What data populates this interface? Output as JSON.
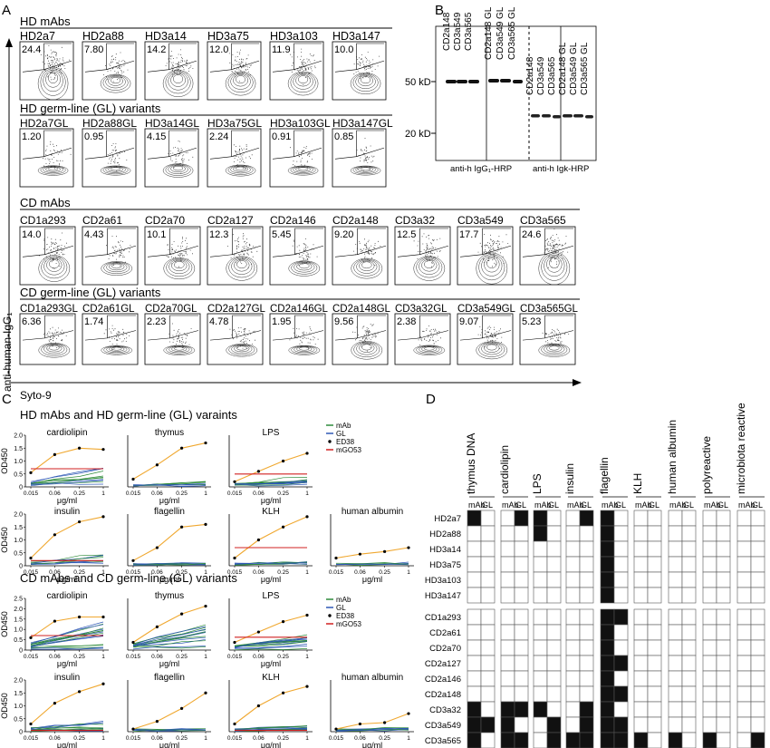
{
  "panels": {
    "A": {
      "letter": "A",
      "y_axis_label": "anti-human-IgG₁",
      "x_axis_label": "Syto-9",
      "groups": [
        {
          "title": "HD mAbs",
          "items": [
            {
              "name": "HD2a7",
              "pct": "24.4"
            },
            {
              "name": "HD2a88",
              "pct": "7.80"
            },
            {
              "name": "HD3a14",
              "pct": "14.2"
            },
            {
              "name": "HD3a75",
              "pct": "12.0"
            },
            {
              "name": "HD3a103",
              "pct": "11.9"
            },
            {
              "name": "HD3a147",
              "pct": "10.0"
            }
          ]
        },
        {
          "title": "HD germ-line (GL) variants",
          "items": [
            {
              "name": "HD2a7GL",
              "pct": "1.20"
            },
            {
              "name": "HD2a88GL",
              "pct": "0.95"
            },
            {
              "name": "HD3a14GL",
              "pct": "4.15"
            },
            {
              "name": "HD3a75GL",
              "pct": "2.24"
            },
            {
              "name": "HD3a103GL",
              "pct": "0.91"
            },
            {
              "name": "HD3a147GL",
              "pct": "0.85"
            }
          ]
        },
        {
          "title": "CD mAbs",
          "items": [
            {
              "name": "CD1a293",
              "pct": "14.0"
            },
            {
              "name": "CD2a61",
              "pct": "4.43"
            },
            {
              "name": "CD2a70",
              "pct": "10.1"
            },
            {
              "name": "CD2a127",
              "pct": "12.3"
            },
            {
              "name": "CD2a146",
              "pct": "5.45"
            },
            {
              "name": "CD2a148",
              "pct": "9.20"
            },
            {
              "name": "CD3a32",
              "pct": "12.5"
            },
            {
              "name": "CD3a549",
              "pct": "17.7"
            },
            {
              "name": "CD3a565",
              "pct": "24.6"
            }
          ]
        },
        {
          "title": "CD germ-line (GL) variants",
          "items": [
            {
              "name": "CD1a293GL",
              "pct": "6.36"
            },
            {
              "name": "CD2a61GL",
              "pct": "1.74"
            },
            {
              "name": "CD2a70GL",
              "pct": "2.23"
            },
            {
              "name": "CD2a127GL",
              "pct": "4.78"
            },
            {
              "name": "CD2a146GL",
              "pct": "1.95"
            },
            {
              "name": "CD2a148GL",
              "pct": "9.56"
            },
            {
              "name": "CD3a32GL",
              "pct": "2.38"
            },
            {
              "name": "CD3a549GL",
              "pct": "9.07"
            },
            {
              "name": "CD3a565GL",
              "pct": "5.23"
            }
          ]
        }
      ]
    },
    "B": {
      "letter": "B",
      "lanes": [
        "CD2a148",
        "CD3a549",
        "CD3a565",
        "CD2a148 GL",
        "CD3a549 GL",
        "CD3a565 GL",
        "CD2a148",
        "CD3a549",
        "CD3a565",
        "CD2a148 GL",
        "CD3a549 GL",
        "CD3a565 GL"
      ],
      "markers": [
        "50 kD",
        "20 kD"
      ],
      "bottom_labels": [
        "anti-h IgG₁-HRP",
        "anti-h Igk-HRP"
      ]
    },
    "C": {
      "letter": "C",
      "section_titles": [
        "HD mAbs and HD germ-line (GL) varaints",
        "CD mAbs and CD germ-line (GL) variants"
      ],
      "legend": [
        {
          "label": "mAb",
          "color": "#2e8b3a"
        },
        {
          "label": "GL",
          "color": "#2f59b5"
        },
        {
          "label": "ED38",
          "color": "#f0a830"
        },
        {
          "label": "mGO53",
          "color": "#d02020"
        }
      ],
      "ylabel": "OD450",
      "xlabel": "μg/ml",
      "x_ticks": [
        "0.015",
        "0.06",
        "0.25",
        "1"
      ],
      "y_ticks_a": [
        "0",
        "0.5",
        "1.0",
        "1.5",
        "2.0"
      ],
      "y_ticks_b": [
        "0",
        "0.5",
        "1.0",
        "1.5",
        "2.0",
        "2.5"
      ]
    },
    "D": {
      "letter": "D",
      "columns": [
        "thymus DNA",
        "cardiolipin",
        "LPS",
        "insulin",
        "flagellin",
        "KLH",
        "human albumin",
        "polyreactive",
        "microbiota reactive"
      ],
      "subcols": [
        "mAb",
        "GL"
      ],
      "rows_top": [
        "HD2a7",
        "HD2a88",
        "HD3a14",
        "HD3a75",
        "HD3a103",
        "HD3a147"
      ],
      "rows_bottom": [
        "CD1a293",
        "CD2a61",
        "CD2a70",
        "CD2a127",
        "CD2a146",
        "CD2a148",
        "CD3a32",
        "CD3a549",
        "CD3a565"
      ],
      "filled_top": [
        [
          0,
          0
        ],
        [
          0,
          3
        ],
        [
          0,
          4
        ],
        [
          0,
          7
        ],
        [
          1,
          4
        ],
        [
          0,
          8
        ],
        [
          1,
          8
        ],
        [
          2,
          8
        ],
        [
          3,
          8
        ],
        [
          4,
          8
        ],
        [
          5,
          8
        ]
      ],
      "filled_bottom": [
        [
          0,
          8
        ],
        [
          0,
          9
        ],
        [
          1,
          8
        ],
        [
          2,
          8
        ],
        [
          3,
          8
        ],
        [
          3,
          9
        ],
        [
          4,
          8
        ],
        [
          5,
          8
        ],
        [
          5,
          9
        ],
        [
          6,
          0
        ],
        [
          6,
          2
        ],
        [
          6,
          3
        ],
        [
          6,
          4
        ],
        [
          6,
          7
        ],
        [
          6,
          8
        ],
        [
          7,
          0
        ],
        [
          7,
          1
        ],
        [
          7,
          2
        ],
        [
          7,
          5
        ],
        [
          7,
          7
        ],
        [
          7,
          8
        ],
        [
          7,
          9
        ],
        [
          8,
          0
        ],
        [
          8,
          2
        ],
        [
          8,
          3
        ],
        [
          8,
          5
        ],
        [
          8,
          6
        ],
        [
          8,
          7
        ],
        [
          8,
          8
        ],
        [
          8,
          9
        ],
        [
          8,
          10
        ],
        [
          8,
          12
        ],
        [
          8,
          14
        ],
        [
          8,
          17
        ]
      ]
    }
  },
  "chart_data": [
    {
      "type": "line",
      "title": "cardiolipin",
      "xlabel": "μg/ml",
      "ylabel": "OD450",
      "x": [
        0.015,
        0.06,
        0.25,
        1
      ],
      "ylim": [
        0,
        2
      ],
      "series": [
        {
          "name": "ED38",
          "values": [
            0.55,
            1.25,
            1.5,
            1.45
          ]
        },
        {
          "name": "mGO53",
          "values": [
            0.7,
            0.7,
            0.7,
            0.7
          ]
        }
      ]
    },
    {
      "type": "line",
      "title": "thymus",
      "xlabel": "μg/ml",
      "x": [
        0.015,
        0.06,
        0.25,
        1
      ],
      "ylim": [
        0,
        2
      ],
      "series": [
        {
          "name": "ED38",
          "values": [
            0.3,
            0.85,
            1.5,
            1.7
          ]
        }
      ]
    },
    {
      "type": "line",
      "title": "LPS",
      "xlabel": "μg/ml",
      "x": [
        0.015,
        0.06,
        0.25,
        1
      ],
      "ylim": [
        0,
        2
      ],
      "series": [
        {
          "name": "ED38",
          "values": [
            0.2,
            0.6,
            1.0,
            1.3
          ]
        },
        {
          "name": "mGO53",
          "values": [
            0.5,
            0.5,
            0.5,
            0.5
          ]
        }
      ]
    },
    {
      "type": "line",
      "title": "insulin",
      "xlabel": "μg/ml",
      "ylabel": "OD450",
      "x": [
        0.015,
        0.06,
        0.25,
        1
      ],
      "ylim": [
        0,
        2
      ],
      "series": [
        {
          "name": "ED38",
          "values": [
            0.3,
            1.2,
            1.7,
            1.9
          ]
        },
        {
          "name": "mGO53",
          "values": [
            0.2,
            0.2,
            0.2,
            0.2
          ]
        }
      ]
    },
    {
      "type": "line",
      "title": "flagellin",
      "xlabel": "μg/ml",
      "x": [
        0.015,
        0.06,
        0.25,
        1
      ],
      "ylim": [
        0,
        2
      ],
      "series": [
        {
          "name": "ED38",
          "values": [
            0.2,
            0.7,
            1.5,
            1.6
          ]
        }
      ]
    },
    {
      "type": "line",
      "title": "KLH",
      "xlabel": "μg/ml",
      "x": [
        0.015,
        0.06,
        0.25,
        1
      ],
      "ylim": [
        0,
        2
      ],
      "series": [
        {
          "name": "ED38",
          "values": [
            0.3,
            1.0,
            1.5,
            1.9
          ]
        },
        {
          "name": "mGO53",
          "values": [
            0.7,
            0.7,
            0.7,
            0.7
          ]
        }
      ]
    },
    {
      "type": "line",
      "title": "human albumin",
      "xlabel": "μg/ml",
      "x": [
        0.015,
        0.06,
        0.25,
        1
      ],
      "ylim": [
        0,
        2
      ],
      "series": [
        {
          "name": "ED38",
          "values": [
            0.3,
            0.45,
            0.55,
            0.7
          ]
        }
      ]
    },
    {
      "type": "line",
      "title": "cardiolipin",
      "xlabel": "μg/ml",
      "ylabel": "OD450",
      "x": [
        0.015,
        0.06,
        0.25,
        1
      ],
      "ylim": [
        0,
        2.5
      ],
      "series": [
        {
          "name": "ED38",
          "values": [
            0.6,
            1.4,
            1.6,
            1.6
          ]
        },
        {
          "name": "mGO53",
          "values": [
            0.7,
            0.7,
            0.7,
            0.7
          ]
        }
      ]
    },
    {
      "type": "line",
      "title": "thymus",
      "xlabel": "μg/ml",
      "x": [
        0.015,
        0.06,
        0.25,
        1
      ],
      "ylim": [
        0,
        2
      ],
      "series": [
        {
          "name": "ED38",
          "values": [
            0.3,
            0.9,
            1.4,
            1.7
          ]
        }
      ]
    },
    {
      "type": "line",
      "title": "LPS",
      "xlabel": "μg/ml",
      "x": [
        0.015,
        0.06,
        0.25,
        1
      ],
      "ylim": [
        0,
        2
      ],
      "series": [
        {
          "name": "ED38",
          "values": [
            0.3,
            0.7,
            1.1,
            1.35
          ]
        },
        {
          "name": "mGO53",
          "values": [
            0.5,
            0.5,
            0.5,
            0.5
          ]
        }
      ]
    },
    {
      "type": "line",
      "title": "insulin",
      "xlabel": "μg/ml",
      "ylabel": "OD450",
      "x": [
        0.015,
        0.06,
        0.25,
        1
      ],
      "ylim": [
        0,
        2
      ],
      "series": [
        {
          "name": "ED38",
          "values": [
            0.3,
            1.1,
            1.55,
            1.85
          ]
        },
        {
          "name": "mGO53",
          "values": [
            0.05,
            0.05,
            0.05,
            0.05
          ]
        }
      ]
    },
    {
      "type": "line",
      "title": "flagellin",
      "xlabel": "μg/ml",
      "x": [
        0.015,
        0.06,
        0.25,
        1
      ],
      "ylim": [
        0,
        2
      ],
      "series": [
        {
          "name": "ED38",
          "values": [
            0.1,
            0.4,
            0.9,
            1.5
          ]
        }
      ]
    },
    {
      "type": "line",
      "title": "KLH",
      "xlabel": "μg/ml",
      "x": [
        0.015,
        0.06,
        0.25,
        1
      ],
      "ylim": [
        0,
        2
      ],
      "series": [
        {
          "name": "ED38",
          "values": [
            0.3,
            1.0,
            1.5,
            1.75
          ]
        },
        {
          "name": "mGO53",
          "values": [
            0.05,
            0.05,
            0.05,
            0.05
          ]
        }
      ]
    },
    {
      "type": "line",
      "title": "human albumin",
      "xlabel": "μg/ml",
      "x": [
        0.015,
        0.06,
        0.25,
        1
      ],
      "ylim": [
        0,
        2
      ],
      "series": [
        {
          "name": "ED38",
          "values": [
            0.1,
            0.3,
            0.35,
            0.7
          ]
        }
      ]
    }
  ]
}
